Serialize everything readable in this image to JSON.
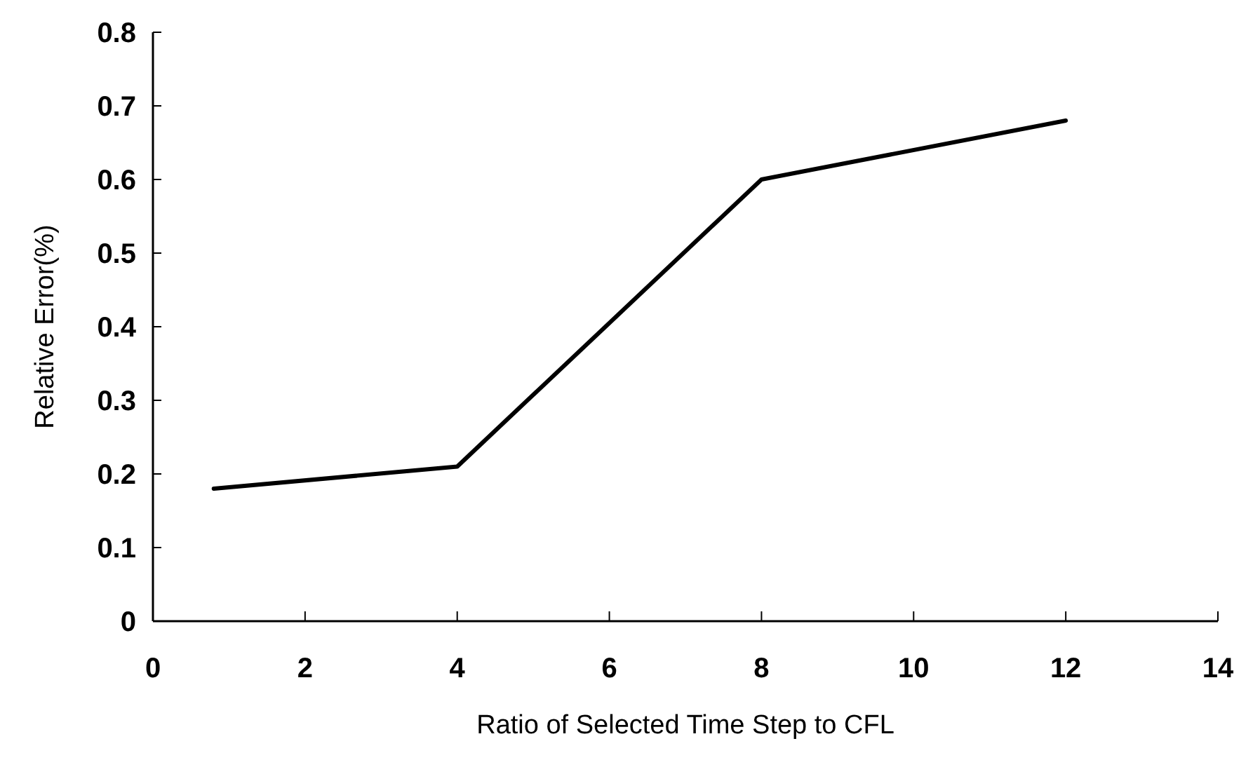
{
  "chart_data": {
    "type": "line",
    "xlabel": "Ratio of Selected Time Step to CFL",
    "ylabel": "Relative Error(%)",
    "x": [
      0.8,
      4,
      8,
      12
    ],
    "series": [
      {
        "color": "#000000",
        "values": [
          0.18,
          0.21,
          0.6,
          0.68
        ]
      }
    ],
    "xlim": [
      0,
      14
    ],
    "xticks": [
      0,
      2,
      4,
      6,
      8,
      10,
      12,
      14
    ],
    "ylim": [
      0,
      0.8
    ],
    "yticks": [
      0,
      0.1,
      0.2,
      0.3,
      0.4,
      0.5,
      0.6,
      0.7,
      0.8
    ],
    "marker": "none",
    "line_style": "solid"
  }
}
